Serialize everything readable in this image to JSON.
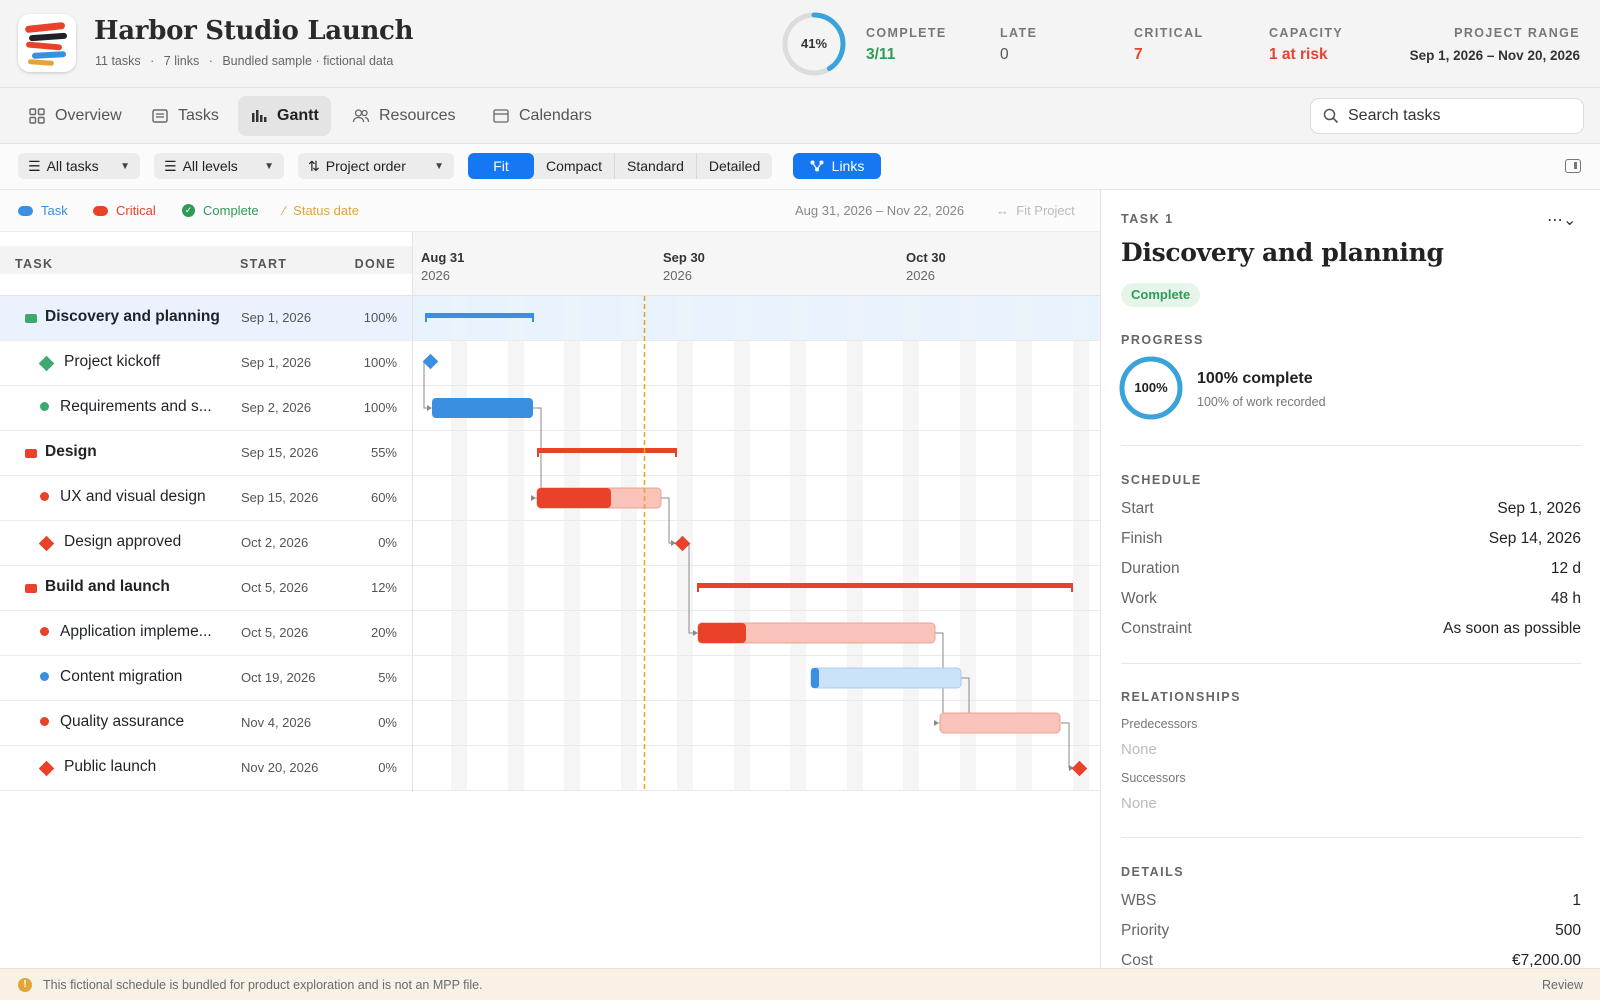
{
  "header": {
    "title": "Harbor Studio Launch",
    "meta": [
      "11 tasks",
      "·",
      "7 links",
      "·",
      "Bundled sample · fictional data"
    ],
    "ring_label": "41%",
    "ring_value": 0.41,
    "stats": [
      {
        "key": "COMPLETE",
        "value": "3/11",
        "color": "#2f9b56"
      },
      {
        "key": "LATE",
        "value": "0",
        "color": "#555555"
      },
      {
        "key": "CRITICAL",
        "value": "7",
        "color": "#e8432a"
      },
      {
        "key": "CAPACITY",
        "value": "1 at risk",
        "color": "#e8432a"
      },
      {
        "key": "PROJECT RANGE",
        "value": "Sep 1, 2026 – Nov 20, 2026",
        "color": "#333333"
      }
    ]
  },
  "nav": {
    "tabs": [
      "Overview",
      "Tasks",
      "Gantt",
      "Resources",
      "Calendars"
    ],
    "active": "Gantt",
    "search_placeholder": "Search tasks"
  },
  "toolbar": {
    "filter": "All tasks",
    "levels": "All levels",
    "order": "Project order",
    "zoom": [
      "Fit",
      "Compact",
      "Standard",
      "Detailed"
    ],
    "zoom_active": "Fit",
    "links": "Links"
  },
  "legend": {
    "items": [
      {
        "label": "Task",
        "color": "#3b8fe0"
      },
      {
        "label": "Critical",
        "color": "#e8432a"
      },
      {
        "label": "Complete",
        "color": "#2f9b56"
      },
      {
        "label": "Status date",
        "color": "#e1a637"
      }
    ],
    "range": "Aug 31, 2026 – Nov 22, 2026",
    "fit_label": "Fit Project"
  },
  "table": {
    "headers": {
      "task": "TASK",
      "start": "START",
      "done": "DONE"
    },
    "rows": [
      {
        "name": "Discovery and planning",
        "start": "Sep 1, 2026",
        "done": "100%",
        "kind": "summary",
        "color": "#3fa870"
      },
      {
        "name": "Project kickoff",
        "start": "Sep 1, 2026",
        "done": "100%",
        "kind": "milestone",
        "color": "#3fa870"
      },
      {
        "name": "Requirements and s...",
        "start": "Sep 2, 2026",
        "done": "100%",
        "kind": "task",
        "color": "#3fa870"
      },
      {
        "name": "Design",
        "start": "Sep 15, 2026",
        "done": "55%",
        "kind": "summary",
        "color": "#e8432a"
      },
      {
        "name": "UX and visual design",
        "start": "Sep 15, 2026",
        "done": "60%",
        "kind": "task",
        "color": "#e8432a"
      },
      {
        "name": "Design approved",
        "start": "Oct 2, 2026",
        "done": "0%",
        "kind": "milestone",
        "color": "#e8432a"
      },
      {
        "name": "Build and launch",
        "start": "Oct 5, 2026",
        "done": "12%",
        "kind": "summary",
        "color": "#e8432a"
      },
      {
        "name": "Application impleme...",
        "start": "Oct 5, 2026",
        "done": "20%",
        "kind": "task",
        "color": "#e8432a"
      },
      {
        "name": "Content migration",
        "start": "Oct 19, 2026",
        "done": "5%",
        "kind": "task",
        "color": "#3b8fe0"
      },
      {
        "name": "Quality assurance",
        "start": "Nov 4, 2026",
        "done": "0%",
        "kind": "task",
        "color": "#e8432a"
      },
      {
        "name": "Public launch",
        "start": "Nov 20, 2026",
        "done": "0%",
        "kind": "milestone",
        "color": "#e8432a"
      }
    ]
  },
  "gantt": {
    "months": [
      {
        "label": "Aug 31",
        "year": "2026"
      },
      {
        "label": "Sep 30",
        "year": "2026"
      },
      {
        "label": "Oct 30",
        "year": "2026"
      }
    ]
  },
  "panel": {
    "kicker": "TASK 1",
    "title": "Discovery and planning",
    "status": "Complete",
    "progress_heading": "PROGRESS",
    "progress_label": "100%",
    "progress_value": 1.0,
    "progress_title": "100% complete",
    "progress_sub": "100% of work recorded",
    "schedule_heading": "SCHEDULE",
    "schedule": [
      {
        "k": "Start",
        "v": "Sep 1, 2026"
      },
      {
        "k": "Finish",
        "v": "Sep 14, 2026"
      },
      {
        "k": "Duration",
        "v": "12 d"
      },
      {
        "k": "Work",
        "v": "48 h"
      },
      {
        "k": "Constraint",
        "v": "As soon as possible"
      }
    ],
    "relationships_heading": "RELATIONSHIPS",
    "predecessors_label": "Predecessors",
    "predecessors": "None",
    "successors_label": "Successors",
    "successors": "None",
    "details_heading": "DETAILS",
    "details": [
      {
        "k": "WBS",
        "v": "1"
      },
      {
        "k": "Priority",
        "v": "500"
      },
      {
        "k": "Cost",
        "v": "€7,200.00"
      }
    ]
  },
  "footer": {
    "notice": "This fictional schedule is bundled for product exploration and is not an MPP file.",
    "action": "Review"
  }
}
